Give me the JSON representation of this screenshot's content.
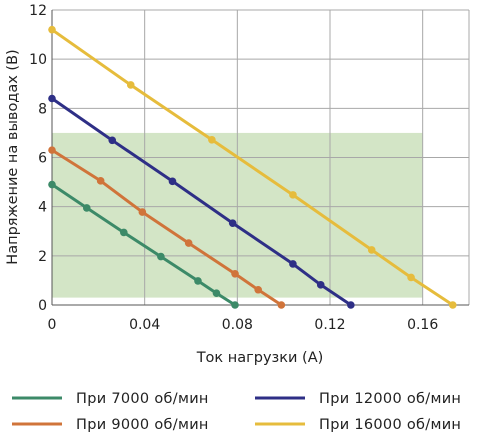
{
  "chart_data": {
    "type": "line",
    "title": "",
    "xlabel": "Ток нагрузки (А)",
    "ylabel": "Напряжение на выводах (В)",
    "xlim": [
      0,
      0.18
    ],
    "ylim": [
      0,
      12
    ],
    "x_ticks": [
      0,
      0.04,
      0.08,
      0.12,
      0.16
    ],
    "x_tick_labels": [
      "0",
      "0.04",
      "0.08",
      "0.12",
      "0.16"
    ],
    "y_ticks": [
      0,
      2,
      4,
      6,
      8,
      10,
      12
    ],
    "y_tick_labels": [
      "0",
      "2",
      "4",
      "6",
      "8",
      "10",
      "12"
    ],
    "grid": true,
    "legend_position": "bottom",
    "shaded_region": {
      "x": [
        0,
        0.16
      ],
      "y": [
        0.3,
        7.0
      ],
      "color": "#d3e5c6"
    },
    "series": [
      {
        "name": "При 7000 об/мин",
        "color": "#3c8a68",
        "x": [
          0,
          0.015,
          0.031,
          0.047,
          0.063,
          0.071,
          0.079
        ],
        "y": [
          4.9,
          3.95,
          2.95,
          1.97,
          0.98,
          0.48,
          0
        ]
      },
      {
        "name": "При 9000 об/мин",
        "color": "#d0743a",
        "x": [
          0,
          0.021,
          0.039,
          0.059,
          0.079,
          0.089,
          0.099
        ],
        "y": [
          6.3,
          5.05,
          3.78,
          2.52,
          1.27,
          0.62,
          0
        ]
      },
      {
        "name": "При 12000 об/мин",
        "color": "#2e2f86",
        "x": [
          0,
          0.026,
          0.052,
          0.078,
          0.104,
          0.116,
          0.129
        ],
        "y": [
          8.4,
          6.7,
          5.03,
          3.33,
          1.67,
          0.82,
          0
        ]
      },
      {
        "name": "При 16000 об/мин",
        "color": "#e6bc3c",
        "x": [
          0,
          0.034,
          0.069,
          0.104,
          0.138,
          0.155,
          0.173
        ],
        "y": [
          11.2,
          8.95,
          6.72,
          4.48,
          2.24,
          1.12,
          0
        ]
      }
    ]
  }
}
